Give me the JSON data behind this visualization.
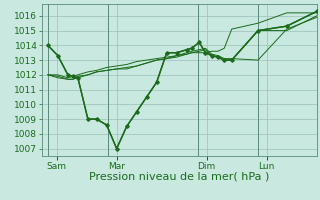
{
  "background_color": "#c8e8e0",
  "plot_bg_color": "#c8e8e0",
  "line_color": "#1a6b1a",
  "grid_color": "#9bbfba",
  "xlabel": "Pression niveau de la mer( hPa )",
  "ylim": [
    1006.5,
    1016.8
  ],
  "yticks": [
    1007,
    1008,
    1009,
    1010,
    1011,
    1012,
    1013,
    1014,
    1015,
    1016
  ],
  "xtick_labels": [
    "Sam",
    "Mar",
    "Dim",
    "Lun"
  ],
  "xtick_positions": [
    12,
    60,
    132,
    180
  ],
  "x_vline_positions": [
    5,
    53,
    125,
    173,
    220
  ],
  "xlim": [
    0,
    220
  ],
  "series": [
    [
      1014.0,
      1013.3,
      1012.0,
      1011.9,
      1011.8,
      1009.0,
      1009.0,
      1008.6,
      1007.0,
      1008.5,
      1009.5,
      1010.5,
      1011.5,
      1013.5,
      1013.5,
      1013.7,
      1013.8,
      1014.2,
      1013.5,
      1013.3,
      1013.2,
      1013.0,
      1013.0,
      1015.0,
      1015.3,
      1016.3
    ],
    [
      1012.0,
      1012.0,
      1011.8,
      1011.9,
      1012.0,
      1012.2,
      1012.3,
      1012.5,
      1012.6,
      1012.7,
      1012.9,
      1013.0,
      1013.1,
      1013.2,
      1013.3,
      1013.4,
      1013.5,
      1013.5,
      1013.5,
      1013.6,
      1013.6,
      1013.8,
      1015.1,
      1015.5,
      1016.2,
      1016.2
    ],
    [
      1012.0,
      1011.8,
      1011.7,
      1011.7,
      1011.9,
      1012.0,
      1012.2,
      1012.3,
      1012.4,
      1012.5,
      1012.6,
      1012.8,
      1013.0,
      1013.1,
      1013.2,
      1013.4,
      1013.5,
      1013.6,
      1013.7,
      1013.3,
      1013.2,
      1013.0,
      1013.0,
      1015.0,
      1015.0,
      1016.0
    ],
    [
      1012.0,
      1011.9,
      1011.7,
      1011.7,
      1011.8,
      1012.0,
      1012.2,
      1012.3,
      1012.4,
      1012.4,
      1012.6,
      1012.8,
      1013.0,
      1013.1,
      1013.3,
      1013.5,
      1013.6,
      1013.7,
      1013.8,
      1013.4,
      1013.3,
      1013.1,
      1013.1,
      1013.0,
      1015.1,
      1015.9
    ]
  ],
  "x_positions": [
    5,
    13,
    21,
    25,
    29,
    37,
    44,
    52,
    60,
    68,
    76,
    84,
    92,
    100,
    108,
    116,
    120,
    126,
    131,
    136,
    141,
    146,
    152,
    173,
    196,
    220
  ],
  "xlabel_fontsize": 8,
  "tick_fontsize": 6.5
}
